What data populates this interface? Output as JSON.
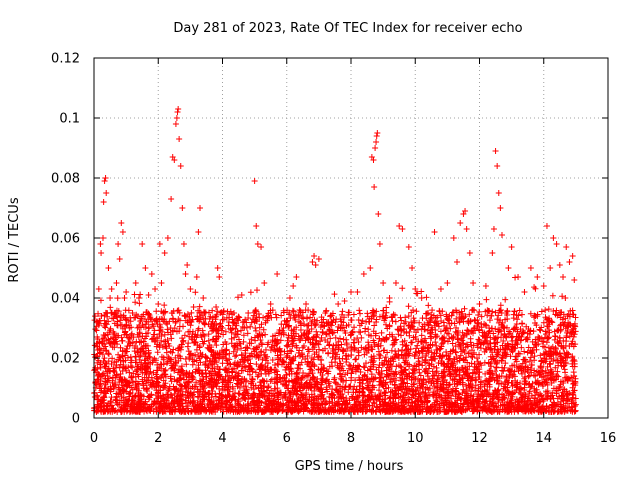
{
  "chart_data": {
    "type": "scatter",
    "title": "Day 281 of 2023, Rate Of TEC Index for receiver echo",
    "xlabel": "GPS time / hours",
    "ylabel": "ROTI / TECUs",
    "xlim": [
      0,
      16
    ],
    "ylim": [
      0,
      0.12
    ],
    "xticks": [
      0,
      2,
      4,
      6,
      8,
      10,
      12,
      14,
      16
    ],
    "xtick_labels": [
      "0",
      "2",
      "4",
      "6",
      "8",
      "10",
      "12",
      "14",
      "16"
    ],
    "yticks": [
      0,
      0.02,
      0.04,
      0.06,
      0.08,
      0.1,
      0.12
    ],
    "ytick_labels": [
      "0",
      "0.02",
      "0.04",
      "0.06",
      "0.08",
      "0.1",
      "0.12"
    ],
    "grid": true,
    "marker": "+",
    "color": "#ff0000",
    "series": [
      {
        "name": "ROTI",
        "points": [
          [
            0.05,
            0.012
          ],
          [
            0.1,
            0.027
          ],
          [
            0.15,
            0.043
          ],
          [
            0.2,
            0.058
          ],
          [
            0.22,
            0.055
          ],
          [
            0.28,
            0.06
          ],
          [
            0.3,
            0.072
          ],
          [
            0.33,
            0.079
          ],
          [
            0.36,
            0.08
          ],
          [
            0.38,
            0.075
          ],
          [
            0.4,
            0.035
          ],
          [
            0.45,
            0.05
          ],
          [
            0.5,
            0.04
          ],
          [
            0.55,
            0.043
          ],
          [
            0.6,
            0.028
          ],
          [
            0.65,
            0.025
          ],
          [
            0.7,
            0.045
          ],
          [
            0.75,
            0.058
          ],
          [
            0.8,
            0.053
          ],
          [
            0.85,
            0.065
          ],
          [
            0.9,
            0.062
          ],
          [
            0.95,
            0.04
          ],
          [
            1.0,
            0.042
          ],
          [
            1.1,
            0.03
          ],
          [
            1.2,
            0.035
          ],
          [
            1.3,
            0.045
          ],
          [
            1.4,
            0.04
          ],
          [
            1.5,
            0.058
          ],
          [
            1.6,
            0.05
          ],
          [
            1.7,
            0.041
          ],
          [
            1.8,
            0.048
          ],
          [
            1.9,
            0.043
          ],
          [
            2.0,
            0.038
          ],
          [
            2.05,
            0.058
          ],
          [
            2.1,
            0.045
          ],
          [
            2.2,
            0.055
          ],
          [
            2.3,
            0.06
          ],
          [
            2.4,
            0.073
          ],
          [
            2.45,
            0.087
          ],
          [
            2.5,
            0.086
          ],
          [
            2.55,
            0.098
          ],
          [
            2.58,
            0.1
          ],
          [
            2.6,
            0.102
          ],
          [
            2.62,
            0.103
          ],
          [
            2.65,
            0.093
          ],
          [
            2.7,
            0.084
          ],
          [
            2.75,
            0.07
          ],
          [
            2.8,
            0.058
          ],
          [
            2.85,
            0.048
          ],
          [
            2.9,
            0.051
          ],
          [
            3.0,
            0.043
          ],
          [
            3.1,
            0.037
          ],
          [
            3.2,
            0.047
          ],
          [
            3.25,
            0.062
          ],
          [
            3.3,
            0.07
          ],
          [
            3.4,
            0.04
          ],
          [
            3.6,
            0.033
          ],
          [
            3.8,
            0.037
          ],
          [
            3.85,
            0.05
          ],
          [
            3.9,
            0.047
          ],
          [
            4.0,
            0.03
          ],
          [
            4.2,
            0.032
          ],
          [
            4.4,
            0.028
          ],
          [
            4.6,
            0.041
          ],
          [
            4.8,
            0.035
          ],
          [
            5.0,
            0.079
          ],
          [
            5.05,
            0.064
          ],
          [
            5.1,
            0.058
          ],
          [
            5.2,
            0.057
          ],
          [
            5.3,
            0.045
          ],
          [
            5.5,
            0.038
          ],
          [
            5.7,
            0.048
          ],
          [
            5.9,
            0.03
          ],
          [
            6.1,
            0.04
          ],
          [
            6.2,
            0.044
          ],
          [
            6.3,
            0.047
          ],
          [
            6.4,
            0.036
          ],
          [
            6.6,
            0.038
          ],
          [
            6.8,
            0.052
          ],
          [
            6.85,
            0.054
          ],
          [
            6.9,
            0.051
          ],
          [
            7.0,
            0.053
          ],
          [
            7.2,
            0.035
          ],
          [
            7.4,
            0.032
          ],
          [
            7.6,
            0.038
          ],
          [
            7.8,
            0.039
          ],
          [
            8.0,
            0.042
          ],
          [
            8.2,
            0.042
          ],
          [
            8.4,
            0.048
          ],
          [
            8.6,
            0.05
          ],
          [
            8.65,
            0.087
          ],
          [
            8.7,
            0.086
          ],
          [
            8.72,
            0.077
          ],
          [
            8.75,
            0.09
          ],
          [
            8.78,
            0.092
          ],
          [
            8.8,
            0.094
          ],
          [
            8.82,
            0.095
          ],
          [
            8.85,
            0.068
          ],
          [
            8.9,
            0.058
          ],
          [
            9.0,
            0.045
          ],
          [
            9.2,
            0.04
          ],
          [
            9.4,
            0.045
          ],
          [
            9.5,
            0.064
          ],
          [
            9.6,
            0.063
          ],
          [
            9.8,
            0.057
          ],
          [
            9.9,
            0.05
          ],
          [
            10.0,
            0.043
          ],
          [
            10.2,
            0.04
          ],
          [
            10.4,
            0.035
          ],
          [
            10.6,
            0.062
          ],
          [
            10.8,
            0.043
          ],
          [
            11.0,
            0.045
          ],
          [
            11.2,
            0.06
          ],
          [
            11.3,
            0.052
          ],
          [
            11.4,
            0.065
          ],
          [
            11.5,
            0.068
          ],
          [
            11.55,
            0.069
          ],
          [
            11.6,
            0.063
          ],
          [
            11.7,
            0.055
          ],
          [
            11.8,
            0.045
          ],
          [
            12.0,
            0.038
          ],
          [
            12.2,
            0.044
          ],
          [
            12.4,
            0.055
          ],
          [
            12.45,
            0.063
          ],
          [
            12.5,
            0.089
          ],
          [
            12.55,
            0.084
          ],
          [
            12.6,
            0.075
          ],
          [
            12.65,
            0.07
          ],
          [
            12.7,
            0.061
          ],
          [
            12.9,
            0.05
          ],
          [
            13.0,
            0.057
          ],
          [
            13.2,
            0.047
          ],
          [
            13.4,
            0.042
          ],
          [
            13.6,
            0.05
          ],
          [
            13.8,
            0.047
          ],
          [
            14.0,
            0.044
          ],
          [
            14.1,
            0.064
          ],
          [
            14.2,
            0.05
          ],
          [
            14.3,
            0.06
          ],
          [
            14.4,
            0.058
          ],
          [
            14.5,
            0.051
          ],
          [
            14.6,
            0.047
          ],
          [
            14.7,
            0.057
          ],
          [
            14.8,
            0.052
          ],
          [
            14.9,
            0.054
          ],
          [
            14.95,
            0.046
          ]
        ]
      }
    ],
    "dense_band": {
      "description_free": true,
      "x_range": [
        0,
        15
      ],
      "y_floor": 0.002,
      "typical_top": 0.034,
      "count": 5200
    }
  }
}
